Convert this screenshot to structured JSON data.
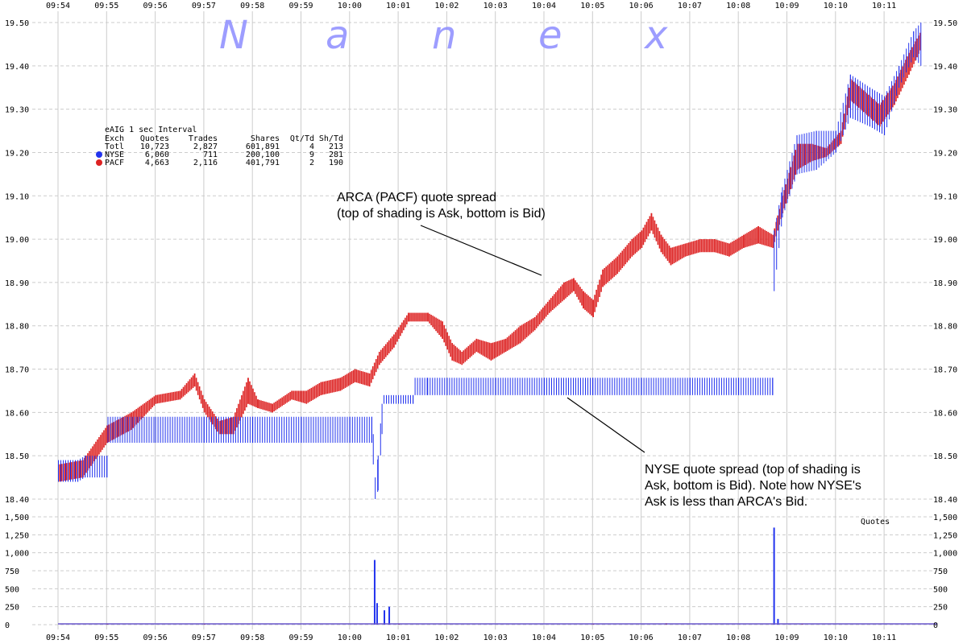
{
  "chart_data": [
    {
      "type": "bar",
      "subtype": "quote-spread",
      "x_ticks": [
        "09:54",
        "09:55",
        "09:56",
        "09:57",
        "09:58",
        "09:59",
        "10:00",
        "10:01",
        "10:02",
        "10:03",
        "10:04",
        "10:05",
        "10:06",
        "10:07",
        "10:08",
        "10:09",
        "10:10",
        "10:11"
      ],
      "y_ticks": [
        "19.50",
        "19.40",
        "19.30",
        "19.20",
        "19.10",
        "19.00",
        "18.90",
        "18.80",
        "18.70",
        "18.60",
        "18.50",
        "18.40"
      ],
      "ylim": [
        18.4,
        19.5
      ],
      "xlim": [
        0,
        18.2
      ],
      "grid": true,
      "colors": {
        "nyse": "#2233ee",
        "pacf": "#dd2222"
      },
      "series": [
        {
          "name": "NYSE",
          "values_note_x_minutes_since_09_54": true,
          "spread": [
            [
              0.0,
              18.44,
              18.49
            ],
            [
              0.4,
              18.44,
              18.49
            ],
            [
              0.55,
              18.45,
              18.5
            ],
            [
              1.0,
              18.45,
              18.5
            ],
            [
              1.02,
              18.53,
              18.59
            ],
            [
              2.0,
              18.53,
              18.59
            ],
            [
              3.0,
              18.53,
              18.59
            ],
            [
              4.0,
              18.53,
              18.59
            ],
            [
              5.0,
              18.53,
              18.59
            ],
            [
              6.0,
              18.53,
              18.59
            ],
            [
              6.45,
              18.53,
              18.59
            ],
            [
              6.48,
              18.48,
              18.55
            ],
            [
              6.52,
              18.4,
              18.45
            ],
            [
              6.58,
              18.42,
              18.5
            ],
            [
              6.66,
              18.55,
              18.62
            ],
            [
              6.7,
              18.62,
              18.64
            ],
            [
              7.3,
              18.62,
              18.64
            ],
            [
              7.34,
              18.64,
              18.68
            ],
            [
              7.6,
              18.64,
              18.68
            ],
            [
              8.0,
              18.64,
              18.68
            ],
            [
              9.0,
              18.64,
              18.68
            ],
            [
              10.0,
              18.64,
              18.68
            ],
            [
              11.0,
              18.64,
              18.68
            ],
            [
              12.0,
              18.64,
              18.68
            ],
            [
              13.0,
              18.64,
              18.68
            ],
            [
              14.0,
              18.64,
              18.68
            ],
            [
              14.7,
              18.64,
              18.68
            ],
            [
              14.73,
              18.88,
              19.02
            ],
            [
              14.9,
              19.05,
              19.12
            ],
            [
              15.2,
              19.15,
              19.24
            ],
            [
              15.6,
              19.16,
              19.25
            ],
            [
              16.0,
              19.2,
              19.25
            ],
            [
              16.3,
              19.28,
              19.38
            ],
            [
              16.7,
              19.26,
              19.35
            ],
            [
              17.0,
              19.24,
              19.33
            ],
            [
              17.3,
              19.35,
              19.4
            ],
            [
              17.6,
              19.42,
              19.48
            ],
            [
              17.75,
              19.4,
              19.5
            ]
          ]
        },
        {
          "name": "PACF",
          "spread": [
            [
              0.0,
              18.44,
              18.48
            ],
            [
              0.5,
              18.45,
              18.49
            ],
            [
              1.0,
              18.53,
              18.57
            ],
            [
              1.5,
              18.56,
              18.6
            ],
            [
              2.0,
              18.62,
              18.64
            ],
            [
              2.5,
              18.63,
              18.65
            ],
            [
              2.8,
              18.66,
              18.69
            ],
            [
              3.0,
              18.6,
              18.63
            ],
            [
              3.3,
              18.55,
              18.58
            ],
            [
              3.6,
              18.55,
              18.59
            ],
            [
              3.9,
              18.62,
              18.68
            ],
            [
              4.1,
              18.61,
              18.63
            ],
            [
              4.4,
              18.6,
              18.62
            ],
            [
              4.8,
              18.63,
              18.65
            ],
            [
              5.1,
              18.62,
              18.65
            ],
            [
              5.4,
              18.64,
              18.67
            ],
            [
              5.8,
              18.65,
              18.68
            ],
            [
              6.1,
              18.67,
              18.7
            ],
            [
              6.4,
              18.66,
              18.69
            ],
            [
              6.6,
              18.71,
              18.74
            ],
            [
              6.9,
              18.75,
              18.78
            ],
            [
              7.2,
              18.81,
              18.83
            ],
            [
              7.6,
              18.81,
              18.83
            ],
            [
              7.9,
              18.77,
              18.81
            ],
            [
              8.1,
              18.72,
              18.76
            ],
            [
              8.3,
              18.71,
              18.74
            ],
            [
              8.6,
              18.74,
              18.77
            ],
            [
              8.9,
              18.72,
              18.76
            ],
            [
              9.2,
              18.74,
              18.77
            ],
            [
              9.5,
              18.76,
              18.8
            ],
            [
              9.8,
              18.79,
              18.82
            ],
            [
              10.1,
              18.83,
              18.86
            ],
            [
              10.4,
              18.86,
              18.9
            ],
            [
              10.6,
              18.88,
              18.91
            ],
            [
              10.8,
              18.84,
              18.88
            ],
            [
              11.0,
              18.82,
              18.86
            ],
            [
              11.2,
              18.89,
              18.93
            ],
            [
              11.5,
              18.92,
              18.96
            ],
            [
              11.8,
              18.96,
              19.0
            ],
            [
              12.0,
              18.98,
              19.02
            ],
            [
              12.2,
              19.02,
              19.06
            ],
            [
              12.4,
              18.97,
              19.01
            ],
            [
              12.6,
              18.94,
              18.98
            ],
            [
              12.9,
              18.96,
              18.99
            ],
            [
              13.2,
              18.97,
              19.0
            ],
            [
              13.5,
              18.97,
              19.0
            ],
            [
              13.8,
              18.96,
              18.99
            ],
            [
              14.1,
              18.98,
              19.01
            ],
            [
              14.4,
              18.99,
              19.03
            ],
            [
              14.7,
              18.98,
              19.01
            ],
            [
              14.9,
              19.06,
              19.1
            ],
            [
              15.2,
              19.16,
              19.22
            ],
            [
              15.5,
              19.18,
              19.22
            ],
            [
              15.8,
              19.19,
              19.21
            ],
            [
              16.1,
              19.22,
              19.25
            ],
            [
              16.3,
              19.32,
              19.37
            ],
            [
              16.6,
              19.29,
              19.34
            ],
            [
              16.9,
              19.26,
              19.31
            ],
            [
              17.2,
              19.31,
              19.36
            ],
            [
              17.5,
              19.38,
              19.43
            ],
            [
              17.75,
              19.44,
              19.48
            ]
          ]
        }
      ]
    },
    {
      "type": "bar",
      "subtype": "volume",
      "title": "Quotes",
      "y_ticks": [
        "1,500",
        "1,250",
        "1,000",
        "750",
        "500",
        "250",
        "0"
      ],
      "ylim": [
        0,
        1500
      ],
      "series": [
        {
          "name": "NYSE",
          "values": [
            [
              6.5,
              900
            ],
            [
              6.55,
              300
            ],
            [
              6.7,
              200
            ],
            [
              6.8,
              250
            ],
            [
              14.72,
              1350
            ],
            [
              14.8,
              80
            ]
          ]
        },
        {
          "name": "PACF",
          "values": [
            [
              1.0,
              12
            ],
            [
              3.0,
              10
            ],
            [
              7.0,
              15
            ],
            [
              11.0,
              12
            ],
            [
              12.5,
              20
            ],
            [
              15.3,
              12
            ]
          ]
        }
      ]
    }
  ],
  "legend": {
    "title": "eAIG 1 sec Interval",
    "headers": [
      "Exch",
      "Quotes",
      "Trades",
      "Shares",
      "Qt/Td",
      "Sh/Td"
    ],
    "rows": [
      {
        "exch": "Totl",
        "quotes": "10,723",
        "trades": "2,827",
        "shares": "601,891",
        "qt_td": "4",
        "sh_td": "213"
      },
      {
        "exch": "NYSE",
        "quotes": "6,060",
        "trades": "711",
        "shares": "200,100",
        "qt_td": "9",
        "sh_td": "281"
      },
      {
        "exch": "PACF",
        "quotes": "4,663",
        "trades": "2,116",
        "shares": "401,791",
        "qt_td": "2",
        "sh_td": "190"
      }
    ]
  },
  "annotations": {
    "arca_line1": "ARCA (PACF) quote spread",
    "arca_line2": "(top of shading is Ask, bottom is Bid)",
    "nyse_line1": "NYSE quote spread (top of shading is",
    "nyse_line2": "Ask, bottom is Bid). Note how NYSE's",
    "nyse_line3": "Ask is less than ARCA's Bid."
  },
  "watermark": [
    "N",
    "a",
    "n",
    "e",
    "x"
  ]
}
